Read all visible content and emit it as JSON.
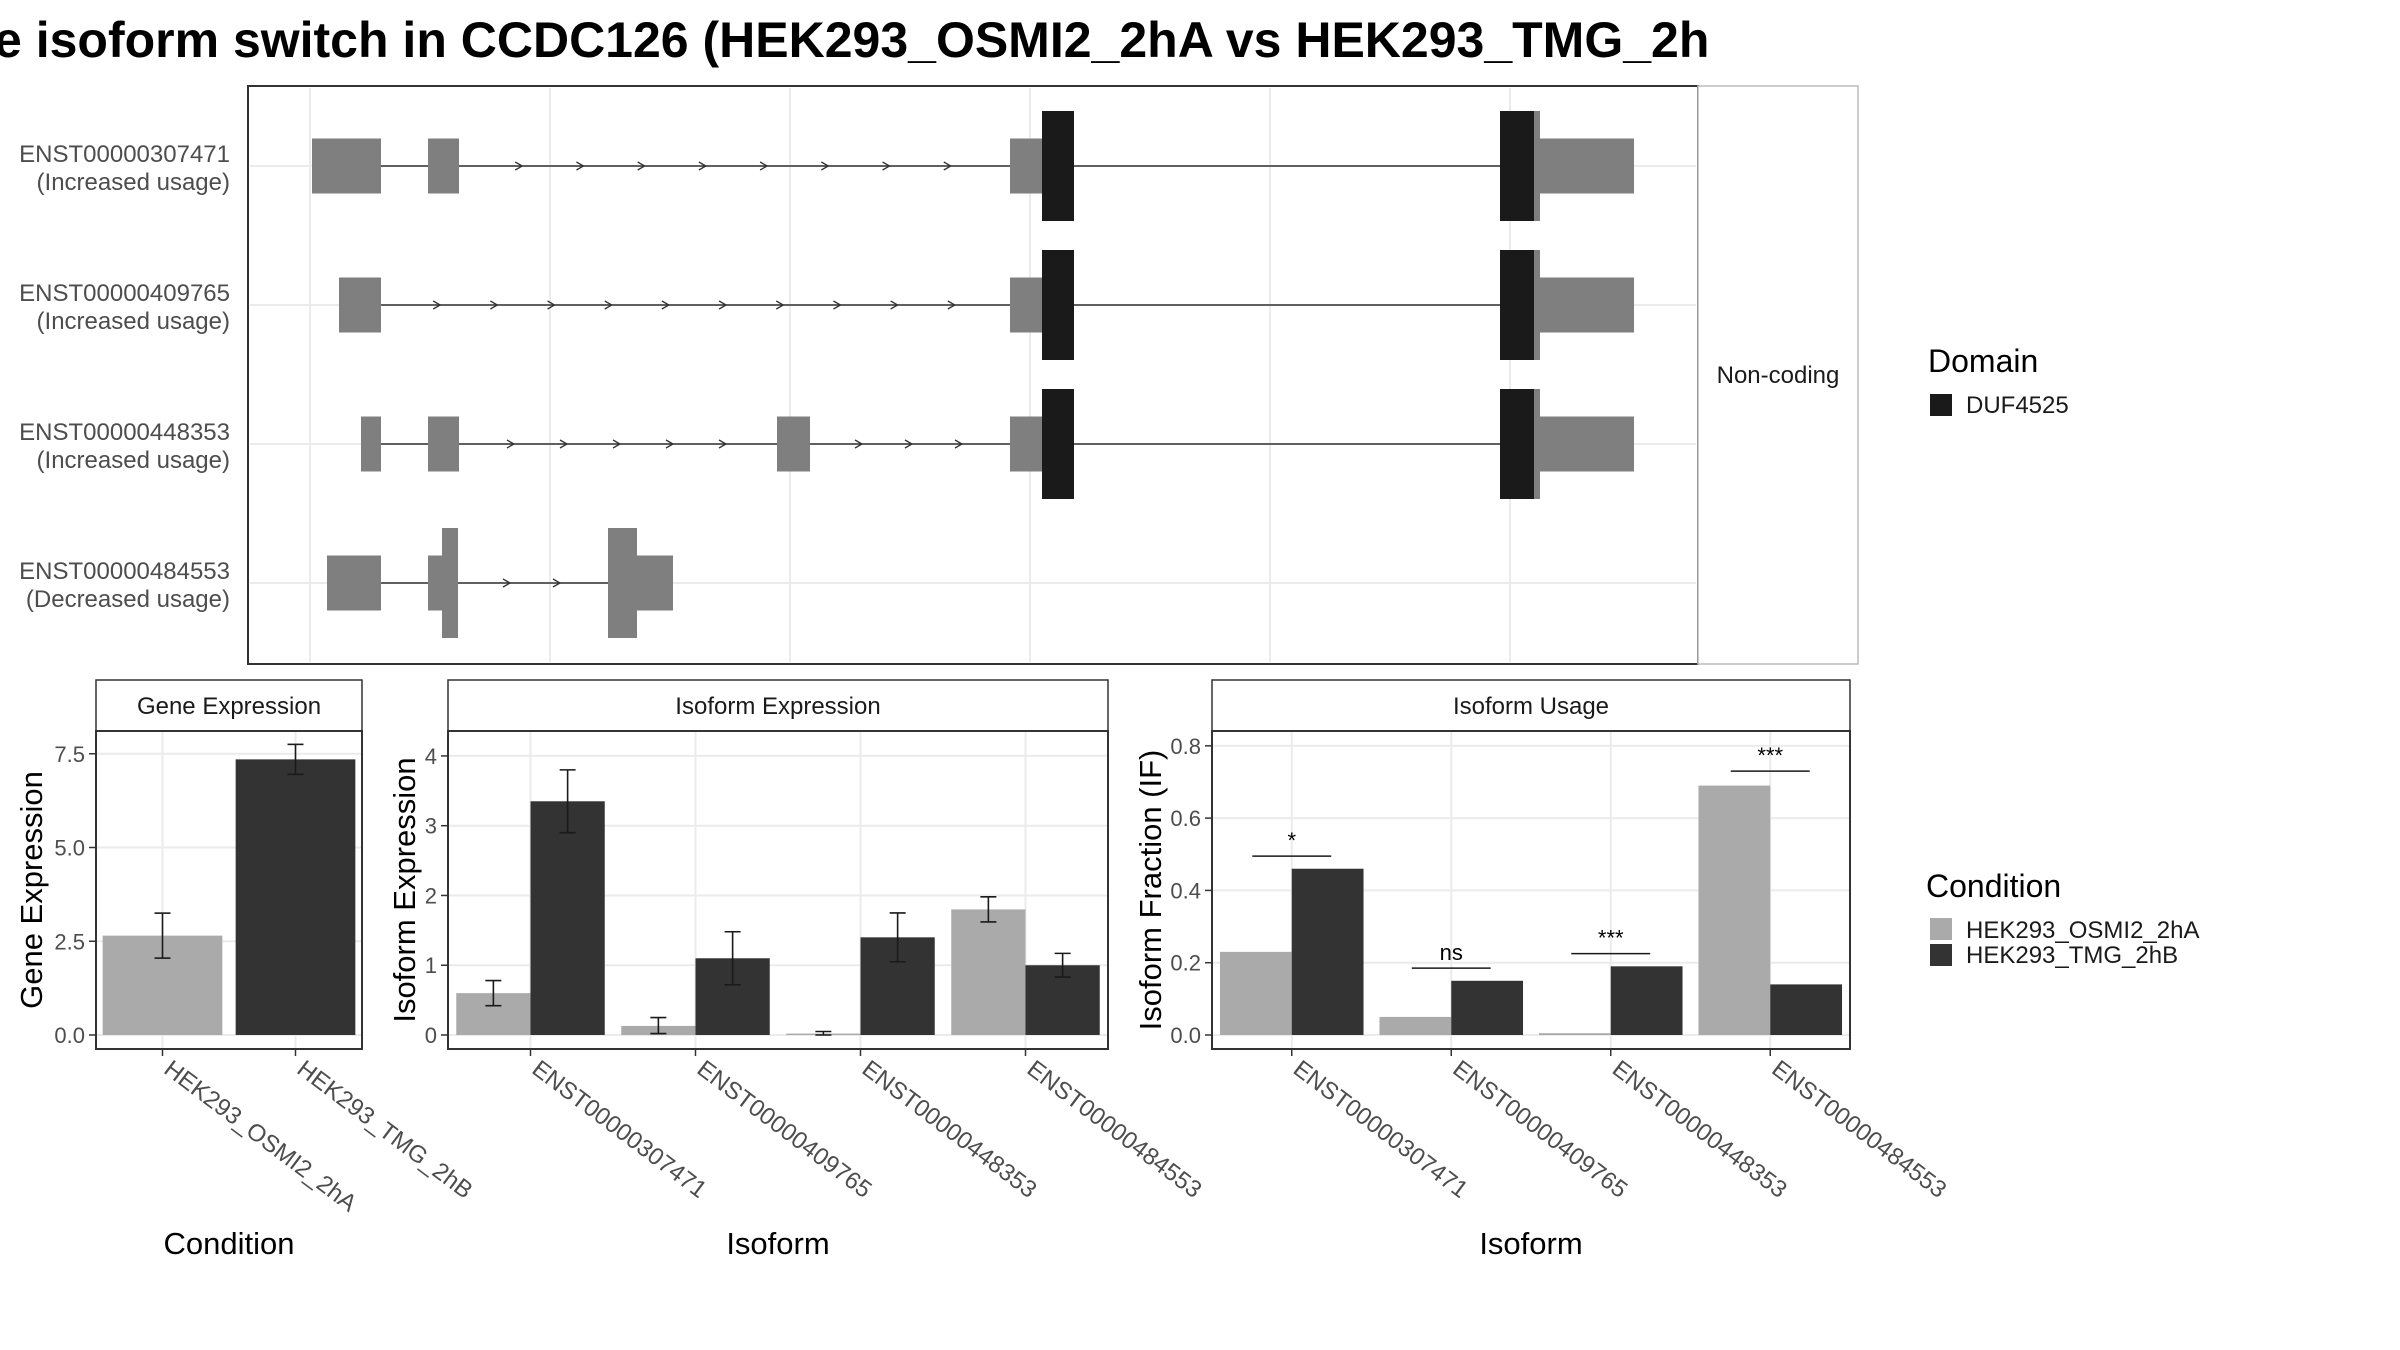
{
  "title": "e isoform switch in CCDC126 (HEK293_OSMI2_2hA vs HEK293_TMG_2h",
  "structure": {
    "facet_label": "Non-coding",
    "transcripts": [
      {
        "id": "ENST00000307471",
        "status": "(Increased usage)"
      },
      {
        "id": "ENST00000409765",
        "status": "(Increased usage)"
      },
      {
        "id": "ENST00000448353",
        "status": "(Increased usage)"
      },
      {
        "id": "ENST00000484553",
        "status": "(Decreased usage)"
      }
    ]
  },
  "legends": {
    "domain": {
      "title": "Domain",
      "items": [
        {
          "label": "DUF4525",
          "color": "#1a1a1a"
        }
      ]
    },
    "condition": {
      "title": "Condition",
      "items": [
        {
          "label": "HEK293_OSMI2_2hA",
          "color": "#aaaaaa"
        },
        {
          "label": "HEK293_TMG_2hB",
          "color": "#333333"
        }
      ]
    }
  },
  "chart_data": [
    {
      "type": "bar",
      "title": "Gene Expression",
      "xlabel": "Condition",
      "ylabel": "Gene Expression",
      "ylim": [
        0,
        8
      ],
      "yticks": [
        "0.0",
        "2.5",
        "5.0",
        "7.5"
      ],
      "categories": [
        "HEK293_OSMI2_2hA",
        "HEK293_TMG_2hB"
      ],
      "values": [
        2.65,
        7.35
      ],
      "errors": [
        [
          2.05,
          3.25
        ],
        [
          6.95,
          7.75
        ]
      ]
    },
    {
      "type": "bar",
      "title": "Isoform Expression",
      "xlabel": "Isoform",
      "ylabel": "Isoform Expression",
      "ylim": [
        0,
        4.3
      ],
      "yticks": [
        "0",
        "1",
        "2",
        "3",
        "4"
      ],
      "categories": [
        "ENST00000307471",
        "ENST00000409765",
        "ENST00000448353",
        "ENST00000484553"
      ],
      "series": [
        {
          "name": "HEK293_OSMI2_2hA",
          "values": [
            0.6,
            0.13,
            0.02,
            1.8
          ],
          "errors": [
            [
              0.42,
              0.78
            ],
            [
              0.02,
              0.25
            ],
            [
              0.0,
              0.05
            ],
            [
              1.62,
              1.98
            ]
          ]
        },
        {
          "name": "HEK293_TMG_2hB",
          "values": [
            3.35,
            1.1,
            1.4,
            1.0
          ],
          "errors": [
            [
              2.9,
              3.8
            ],
            [
              0.72,
              1.48
            ],
            [
              1.05,
              1.75
            ],
            [
              0.83,
              1.17
            ]
          ]
        }
      ]
    },
    {
      "type": "bar",
      "title": "Isoform Usage",
      "xlabel": "Isoform",
      "ylabel": "Isoform Fraction (IF)",
      "ylim": [
        0,
        0.83
      ],
      "yticks": [
        "0.0",
        "0.2",
        "0.4",
        "0.6",
        "0.8"
      ],
      "categories": [
        "ENST00000307471",
        "ENST00000409765",
        "ENST00000448353",
        "ENST00000484553"
      ],
      "series": [
        {
          "name": "HEK293_OSMI2_2hA",
          "values": [
            0.23,
            0.05,
            0.005,
            0.69
          ]
        },
        {
          "name": "HEK293_TMG_2hB",
          "values": [
            0.46,
            0.15,
            0.19,
            0.14
          ]
        }
      ],
      "significance": [
        "*",
        "ns",
        "***",
        "***"
      ],
      "significance_y": [
        0.495,
        0.185,
        0.225,
        0.73
      ]
    }
  ]
}
